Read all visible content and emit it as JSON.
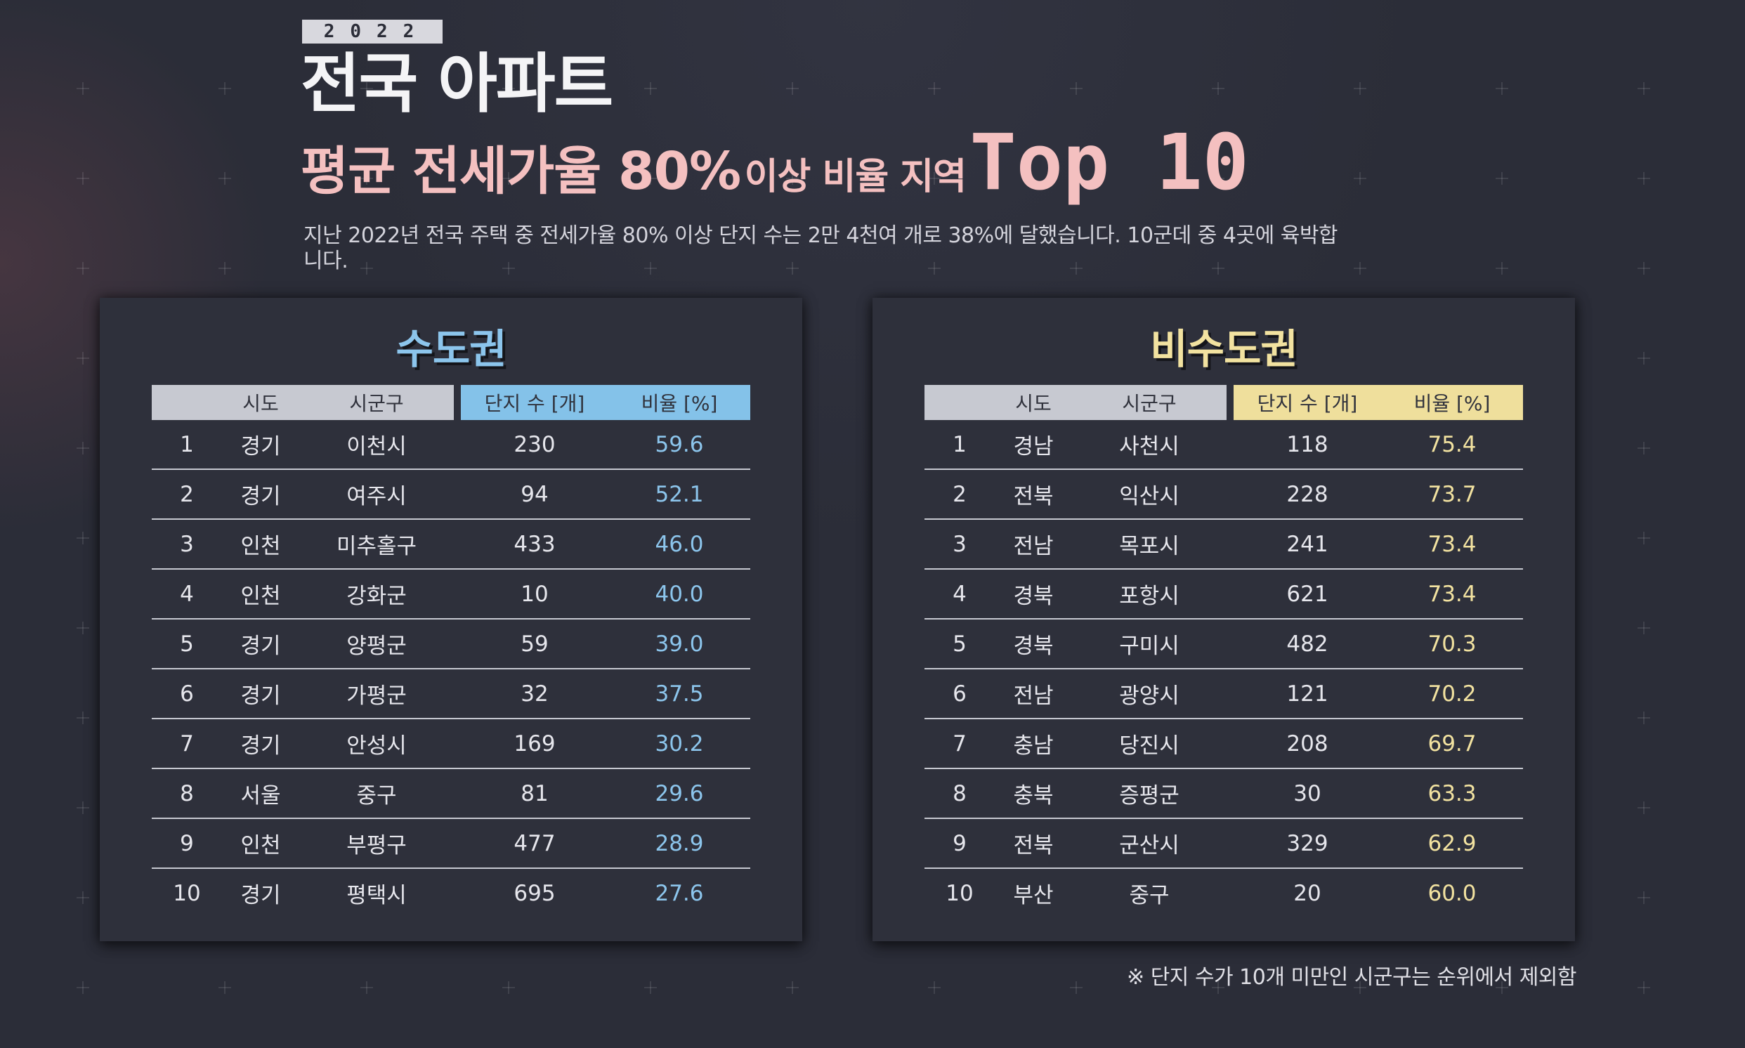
{
  "header": {
    "year": "2022",
    "title_line1": "전국 아파트",
    "title_line2_a": "평균 전세가율 80%",
    "title_line2_b": "이상 비율 지역",
    "title_line2_c": "Top 10",
    "description": "지난 2022년 전국 주택 중 전세가율 80% 이상 단지 수는 2만 4천여 개로 38%에 달했습니다. 10군데 중 4곳에 육박합니다."
  },
  "columns": {
    "rank": "",
    "sido": "시도",
    "sigungu": "시군구",
    "complexes": "단지 수 [개]",
    "ratio": "비율 [%]"
  },
  "capital": {
    "title": "수도권",
    "rows": [
      {
        "rank": "1",
        "sido": "경기",
        "sigungu": "이천시",
        "complexes": "230",
        "ratio": "59.6"
      },
      {
        "rank": "2",
        "sido": "경기",
        "sigungu": "여주시",
        "complexes": "94",
        "ratio": "52.1"
      },
      {
        "rank": "3",
        "sido": "인천",
        "sigungu": "미추홀구",
        "complexes": "433",
        "ratio": "46.0"
      },
      {
        "rank": "4",
        "sido": "인천",
        "sigungu": "강화군",
        "complexes": "10",
        "ratio": "40.0"
      },
      {
        "rank": "5",
        "sido": "경기",
        "sigungu": "양평군",
        "complexes": "59",
        "ratio": "39.0"
      },
      {
        "rank": "6",
        "sido": "경기",
        "sigungu": "가평군",
        "complexes": "32",
        "ratio": "37.5"
      },
      {
        "rank": "7",
        "sido": "경기",
        "sigungu": "안성시",
        "complexes": "169",
        "ratio": "30.2"
      },
      {
        "rank": "8",
        "sido": "서울",
        "sigungu": "중구",
        "complexes": "81",
        "ratio": "29.6"
      },
      {
        "rank": "9",
        "sido": "인천",
        "sigungu": "부평구",
        "complexes": "477",
        "ratio": "28.9"
      },
      {
        "rank": "10",
        "sido": "경기",
        "sigungu": "평택시",
        "complexes": "695",
        "ratio": "27.6"
      }
    ]
  },
  "noncapital": {
    "title": "비수도권",
    "rows": [
      {
        "rank": "1",
        "sido": "경남",
        "sigungu": "사천시",
        "complexes": "118",
        "ratio": "75.4"
      },
      {
        "rank": "2",
        "sido": "전북",
        "sigungu": "익산시",
        "complexes": "228",
        "ratio": "73.7"
      },
      {
        "rank": "3",
        "sido": "전남",
        "sigungu": "목포시",
        "complexes": "241",
        "ratio": "73.4"
      },
      {
        "rank": "4",
        "sido": "경북",
        "sigungu": "포항시",
        "complexes": "621",
        "ratio": "73.4"
      },
      {
        "rank": "5",
        "sido": "경북",
        "sigungu": "구미시",
        "complexes": "482",
        "ratio": "70.3"
      },
      {
        "rank": "6",
        "sido": "전남",
        "sigungu": "광양시",
        "complexes": "121",
        "ratio": "70.2"
      },
      {
        "rank": "7",
        "sido": "충남",
        "sigungu": "당진시",
        "complexes": "208",
        "ratio": "69.7"
      },
      {
        "rank": "8",
        "sido": "충북",
        "sigungu": "증평군",
        "complexes": "30",
        "ratio": "63.3"
      },
      {
        "rank": "9",
        "sido": "전북",
        "sigungu": "군산시",
        "complexes": "329",
        "ratio": "62.9"
      },
      {
        "rank": "10",
        "sido": "부산",
        "sigungu": "중구",
        "complexes": "20",
        "ratio": "60.0"
      }
    ]
  },
  "footnote": "※  단지 수가 10개 미만인 시군구는 순위에서 제외함",
  "colors": {
    "background": "#2b2d38",
    "title_pink": "#f4c0c0",
    "capital_blue": "#8cc5ec",
    "noncapital_yellow": "#f2e2a0"
  }
}
